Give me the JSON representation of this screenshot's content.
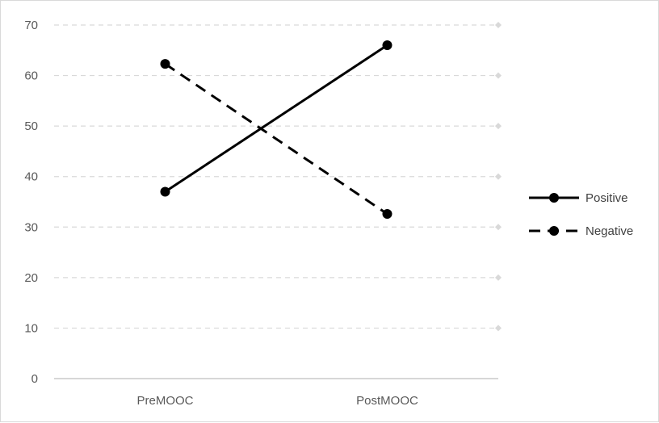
{
  "chart_data": {
    "type": "line",
    "categories": [
      "PreMOOC",
      "PostMOOC"
    ],
    "series": [
      {
        "name": "Positive",
        "values": [
          37,
          66
        ],
        "line_style": "solid",
        "color": "#000000"
      },
      {
        "name": "Negative",
        "values": [
          62.3,
          32.6
        ],
        "line_style": "dashed",
        "color": "#000000"
      }
    ],
    "y_ticks": [
      0,
      10,
      20,
      30,
      40,
      50,
      60,
      70
    ],
    "ylim": [
      0,
      70
    ],
    "grid": true,
    "gridline_color": "#d9d9d9",
    "legend_position": "right"
  }
}
